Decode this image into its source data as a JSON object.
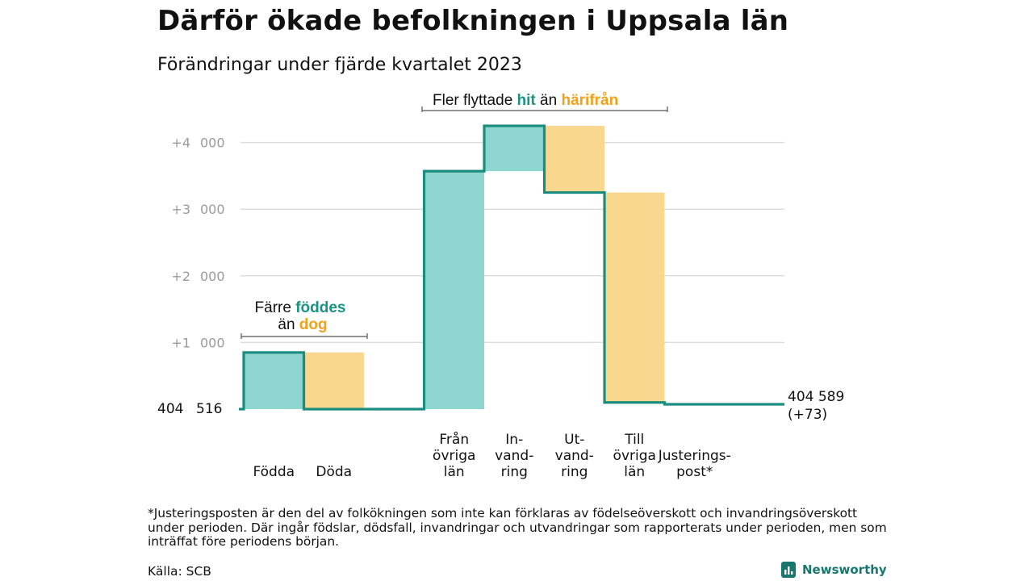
{
  "title": "Därför ökade befolkningen i Uppsala län",
  "subtitle": "Förändringar under fjärde kvartalet 2023",
  "annotations": {
    "migration": {
      "prefix": "Fler flyttade ",
      "hit": "hit",
      "mid": " än ",
      "harifran": "härifrån"
    },
    "births": {
      "line1_prefix": "Färre ",
      "line1_word": "föddes",
      "line2_prefix": "än ",
      "line2_word": "dog"
    }
  },
  "footnote": "*Justeringsposten är den del av folkökningen som inte kan förklaras av födelseöverskott och invandringsöverskott under perioden. Där ingår födslar, dödsfall, invandringar och utvandringar som rapporterats under perioden, men som inträffat före periodens början.",
  "source": "Källa: SCB",
  "brand": "Newsworthy",
  "colors": {
    "increase": "#8ed6cf",
    "decrease": "#fad78f",
    "line": "#1a8c80",
    "hit_text": "#1a9482",
    "away_text": "#f0a21d",
    "grid": "#dddddd",
    "tick_text": "#9a9a9a"
  },
  "chart_data": {
    "type": "waterfall",
    "start_value": "404 516",
    "end_value": "404 589",
    "end_change": "(+73)",
    "y_ticks": [
      "+1 000",
      "+2 000",
      "+3 000",
      "+4 000"
    ],
    "ylim": [
      0,
      4300
    ],
    "steps": [
      {
        "label": [
          "Födda"
        ],
        "change": 850,
        "kind": "increase"
      },
      {
        "label": [
          "Döda"
        ],
        "change": -850,
        "kind": "decrease"
      },
      {
        "label": [
          ""
        ],
        "change": 0,
        "kind": "spacer"
      },
      {
        "label": [
          "Från",
          "övriga",
          "län"
        ],
        "change": 3570,
        "kind": "increase"
      },
      {
        "label": [
          "In-",
          "vand-",
          "ring"
        ],
        "change": 680,
        "kind": "increase"
      },
      {
        "label": [
          "Ut-",
          "vand-",
          "ring"
        ],
        "change": -1000,
        "kind": "decrease"
      },
      {
        "label": [
          "Till",
          "övriga",
          "län"
        ],
        "change": -3150,
        "kind": "decrease"
      },
      {
        "label": [
          "Justerings-",
          "post*"
        ],
        "change": -27,
        "kind": "adjustment"
      }
    ],
    "cumulative_changes": [
      0,
      850,
      0,
      0,
      3570,
      4250,
      3250,
      100,
      73
    ]
  }
}
